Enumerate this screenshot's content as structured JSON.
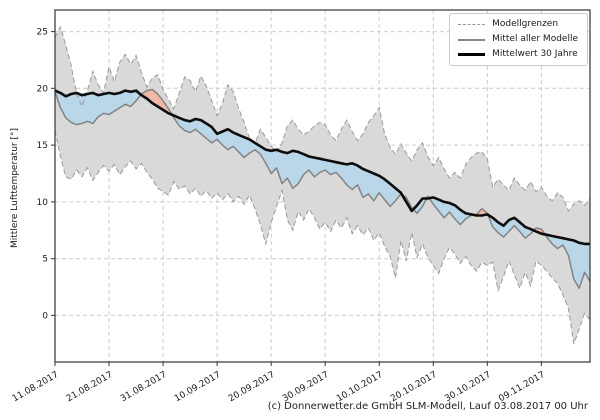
{
  "chart_data": {
    "type": "line",
    "title": "",
    "ylabel": "Mittlere Lufttemperatur [°]",
    "xlabel": "",
    "ylim": [
      -4.1,
      26.9
    ],
    "y_ticks": [
      0,
      5,
      10,
      15,
      20,
      25
    ],
    "x_tick_labels": [
      "11.08.2017",
      "21.08.2017",
      "31.08.2017",
      "10.09.2017",
      "20.09.2017",
      "30.09.2017",
      "10.10.2017",
      "20.10.2017",
      "30.10.2017",
      "09.11.2017"
    ],
    "tick_interval_days": 10,
    "x_days_total": 99,
    "grid": "dashed",
    "legend_position": "top-right",
    "legend": {
      "model_bounds": "Modellgrenzen",
      "model_mean": "Mittel aller Modelle",
      "mean30": "Mittelwert 30 Jahre"
    },
    "footer": "(c) Donnerwetter.de GmbH SLM-Modell, Lauf 03.08.2017 00 Uhr",
    "series": [
      {
        "name": "Modellgrenzen oben",
        "values": [
          24.5,
          25.4,
          23.8,
          22.0,
          19.5,
          18.4,
          19.8,
          21.5,
          20.3,
          19.6,
          21.9,
          20.6,
          22.3,
          23.0,
          22.1,
          22.9,
          21.4,
          20.1,
          20.9,
          21.2,
          19.9,
          19.0,
          18.2,
          19.6,
          21.0,
          20.7,
          19.7,
          21.1,
          20.2,
          18.9,
          17.6,
          18.7,
          20.3,
          19.7,
          18.2,
          17.0,
          15.6,
          15.1,
          16.4,
          15.7,
          14.9,
          14.4,
          15.2,
          16.7,
          17.2,
          16.4,
          15.9,
          16.2,
          16.7,
          17.0,
          16.8,
          15.9,
          15.4,
          16.4,
          17.2,
          16.2,
          15.4,
          16.0,
          17.0,
          17.6,
          18.3,
          16.0,
          14.8,
          14.2,
          15.1,
          14.3,
          13.6,
          14.6,
          15.2,
          14.0,
          13.2,
          13.9,
          12.9,
          12.1,
          12.6,
          12.1,
          13.3,
          13.9,
          14.3,
          14.4,
          13.8,
          11.3,
          12.0,
          11.5,
          11.0,
          12.1,
          11.5,
          11.0,
          11.8,
          10.9,
          11.3,
          10.5,
          10.1,
          10.8,
          10.4,
          9.2,
          9.8,
          10.1,
          9.7,
          10.3
        ]
      },
      {
        "name": "Modellgrenzen unten",
        "values": [
          16.3,
          14.0,
          12.2,
          12.0,
          12.8,
          12.2,
          13.0,
          11.9,
          12.6,
          13.2,
          12.7,
          13.3,
          12.4,
          13.1,
          13.6,
          12.9,
          13.4,
          12.6,
          12.0,
          11.2,
          10.9,
          10.6,
          11.8,
          11.1,
          11.4,
          10.7,
          11.2,
          10.5,
          11.0,
          10.3,
          10.8,
          10.2,
          10.7,
          10.0,
          10.5,
          9.8,
          10.6,
          9.4,
          8.0,
          6.3,
          8.2,
          9.6,
          11.0,
          8.4,
          7.5,
          9.2,
          8.4,
          9.4,
          8.6,
          7.6,
          8.2,
          7.4,
          8.4,
          7.7,
          8.6,
          7.2,
          7.9,
          7.1,
          7.7,
          6.6,
          7.3,
          6.1,
          5.2,
          3.3,
          6.6,
          4.8,
          7.3,
          5.1,
          6.3,
          5.1,
          4.4,
          3.7,
          5.0,
          6.0,
          5.4,
          4.6,
          5.2,
          4.4,
          3.9,
          4.7,
          4.4,
          4.7,
          2.2,
          3.4,
          4.8,
          3.6,
          2.4,
          3.8,
          2.6,
          4.8,
          4.4,
          3.9,
          3.3,
          2.8,
          1.8,
          0.6,
          -2.5,
          -1.2,
          0.2,
          -0.4
        ]
      },
      {
        "name": "Mittel aller Modelle",
        "values": [
          19.7,
          18.3,
          17.4,
          17.0,
          16.8,
          16.9,
          17.1,
          16.9,
          17.5,
          17.8,
          17.7,
          18.0,
          18.3,
          18.6,
          18.4,
          18.9,
          19.5,
          19.8,
          19.9,
          19.5,
          18.9,
          18.2,
          17.4,
          16.7,
          16.3,
          16.1,
          16.4,
          16.0,
          15.6,
          15.2,
          15.5,
          15.0,
          14.6,
          14.9,
          14.4,
          13.9,
          14.3,
          14.6,
          14.2,
          13.4,
          12.5,
          13.0,
          11.6,
          12.1,
          11.2,
          11.6,
          12.4,
          12.8,
          12.2,
          12.6,
          12.8,
          12.4,
          12.6,
          12.1,
          11.5,
          11.1,
          11.5,
          10.4,
          10.7,
          10.1,
          10.8,
          10.2,
          9.6,
          10.1,
          10.7,
          10.4,
          9.5,
          9.0,
          9.6,
          10.5,
          9.8,
          9.2,
          8.6,
          9.1,
          8.5,
          8.0,
          8.5,
          8.8,
          8.9,
          9.4,
          9.0,
          7.8,
          7.3,
          6.9,
          7.4,
          7.9,
          7.4,
          6.8,
          7.2,
          7.7,
          7.6,
          6.9,
          6.3,
          5.9,
          6.2,
          5.3,
          3.2,
          2.4,
          3.8,
          3.0
        ]
      },
      {
        "name": "Mittelwert 30 Jahre",
        "values": [
          19.8,
          19.6,
          19.3,
          19.5,
          19.6,
          19.4,
          19.5,
          19.6,
          19.4,
          19.5,
          19.6,
          19.5,
          19.6,
          19.8,
          19.7,
          19.8,
          19.4,
          19.1,
          18.7,
          18.4,
          18.1,
          17.8,
          17.6,
          17.4,
          17.2,
          17.1,
          17.3,
          17.2,
          16.9,
          16.6,
          16.0,
          16.2,
          16.4,
          16.1,
          15.9,
          15.7,
          15.5,
          15.2,
          14.9,
          14.6,
          14.5,
          14.6,
          14.4,
          14.3,
          14.5,
          14.4,
          14.2,
          14.0,
          13.9,
          13.8,
          13.7,
          13.6,
          13.5,
          13.4,
          13.3,
          13.4,
          13.2,
          12.9,
          12.7,
          12.5,
          12.3,
          12.0,
          11.6,
          11.2,
          10.8,
          10.0,
          9.2,
          9.7,
          10.3,
          10.3,
          10.4,
          10.2,
          10.0,
          9.9,
          9.7,
          9.3,
          9.0,
          8.9,
          8.8,
          8.8,
          8.9,
          8.6,
          8.2,
          7.9,
          8.4,
          8.6,
          8.2,
          7.8,
          7.6,
          7.4,
          7.2,
          7.1,
          7.0,
          6.9,
          6.8,
          6.7,
          6.6,
          6.4,
          6.3,
          6.3
        ]
      }
    ],
    "colors": {
      "band_fill": "#d9d9d9",
      "band_edge": "#999999",
      "model_mean_line": "#848484",
      "mean30_line": "#0d0d0d",
      "below_normal_fill": "#b9d7e8",
      "above_normal_fill": "#f2b8a8",
      "grid": "#cccccc",
      "frame": "#333333",
      "text": "#1a1a1a"
    }
  }
}
